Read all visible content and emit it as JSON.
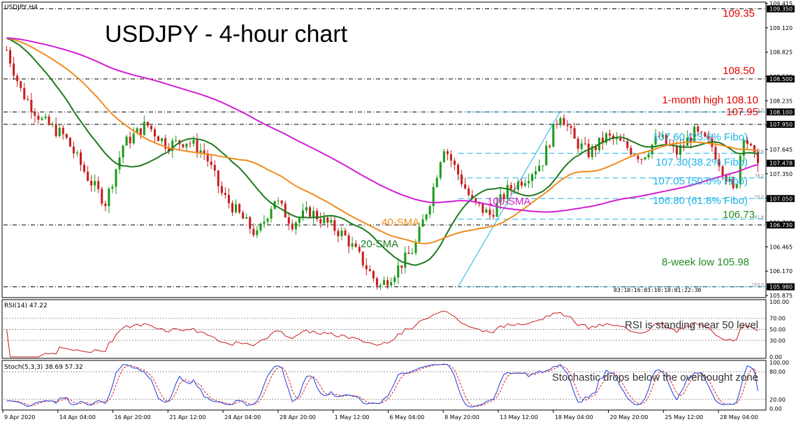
{
  "window": {
    "symbol_label": "USDJPY,H4",
    "big_title": "USDJPY - 4-hour chart"
  },
  "colors": {
    "candle_up": "#1a9a1a",
    "candle_down": "#c81e1e",
    "sma20": "#1e7a1e",
    "sma40": "#f08c1e",
    "sma100": "#d21ed2",
    "fibo": "#1eb4e6",
    "level": "#000000",
    "red_text": "#e60000",
    "green_text": "#228b22",
    "rsi": "#c81e1e",
    "stoch_main": "#1e3cdc",
    "stoch_signal": "#dc1e1e"
  },
  "chart_data": [
    {
      "type": "candlestick",
      "title": "USDJPY - 4-hour chart",
      "ylim": [
        105.875,
        109.415
      ],
      "y_ticks": [
        "109.415",
        "109.120",
        "108.825",
        "108.530",
        "108.235",
        "107.940",
        "107.645",
        "107.350",
        "107.055",
        "106.760",
        "106.465",
        "106.170",
        "105.875"
      ],
      "price_boxes": [
        "109.350",
        "108.500",
        "108.100",
        "107.950",
        "107.478",
        "107.050",
        "106.730",
        "105.980"
      ],
      "x_tick_labels": [
        "9 Apr 2020",
        "14 Apr 04:00",
        "16 Apr 20:00",
        "21 Apr 12:00",
        "24 Apr 04:00",
        "28 Apr 20:00",
        "1 May 12:00",
        "6 May 04:00",
        "8 May 20:00",
        "13 May 12:00",
        "18 May 04:00",
        "20 May 20:00",
        "25 May 12:00",
        "28 May 04:00"
      ],
      "series": [
        {
          "name": "20-SMA"
        },
        {
          "name": "40-SMA"
        },
        {
          "name": "100-SMA"
        }
      ],
      "horizontal_levels": [
        {
          "value": 109.35,
          "label": "109.35",
          "color": "red"
        },
        {
          "value": 108.5,
          "label": "108.50",
          "color": "red"
        },
        {
          "value": 108.1,
          "label": "1-month high 108.10",
          "color": "red"
        },
        {
          "value": 107.95,
          "label": "107.95",
          "color": "red"
        },
        {
          "value": 106.73,
          "label": "106.73",
          "color": "green"
        },
        {
          "value": 105.98,
          "label": "8-week low 105.98",
          "color": "green"
        }
      ],
      "fibonacci": [
        {
          "value": 108.1,
          "pct": "0.0",
          "label": ""
        },
        {
          "value": 107.6,
          "pct": "23.6",
          "label": "107.60 (23.6% Fibo)"
        },
        {
          "value": 107.3,
          "pct": "38.2",
          "label": "107.30(38.2% Fibo)"
        },
        {
          "value": 107.05,
          "pct": "50.0",
          "label": "107.05 (50.0% Fibo)"
        },
        {
          "value": 106.8,
          "pct": "61.8",
          "label": "106.80 (61.8% Fibo)"
        },
        {
          "value": 105.98,
          "pct": "100.0",
          "label": ""
        }
      ],
      "last_price": 107.478,
      "timer_text": "03:10:16:03:10:10:01:22:30"
    },
    {
      "type": "line",
      "title": "RSI(14) 47.22",
      "ylim": [
        0,
        100
      ],
      "y_ticks": [
        "100.00",
        "70.00",
        "50.00",
        "30.00",
        "0.00"
      ],
      "annotation": "RSI is standing near 50 level",
      "last_value": 47.22
    },
    {
      "type": "line",
      "title": "Stoch(5,3,3) 38.69 57.32",
      "ylim": [
        0,
        100
      ],
      "y_ticks": [
        "100.00",
        "80.00",
        "20.00",
        "0.00"
      ],
      "annotation": "Stochastic drops below the overbought zone",
      "main": 38.69,
      "signal": 57.32
    }
  ]
}
